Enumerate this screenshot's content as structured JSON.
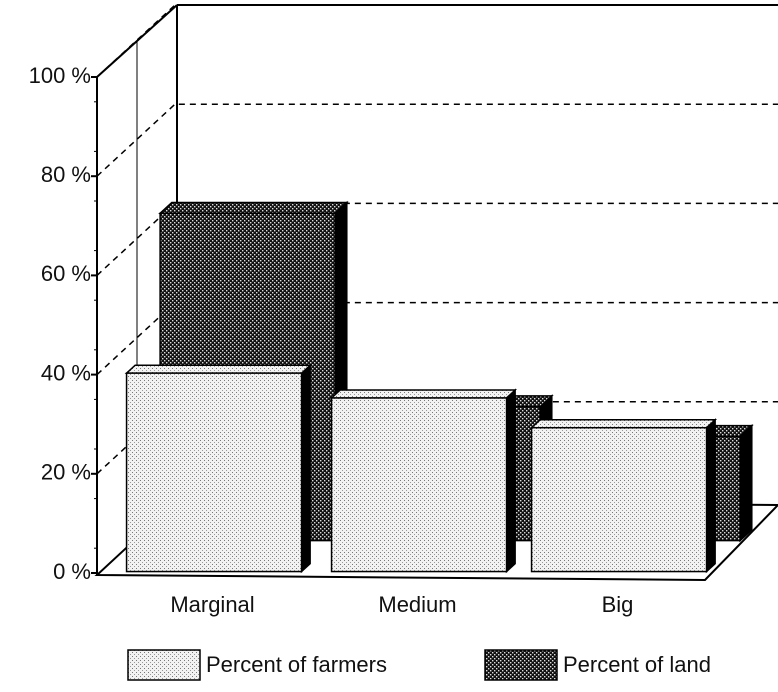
{
  "chart_data": {
    "type": "bar3d",
    "categories": [
      "Marginal",
      "Medium",
      "Big"
    ],
    "series": [
      {
        "name": "Percent of farmers",
        "color": "#e6e6e6",
        "values": [
          40,
          35,
          29
        ]
      },
      {
        "name": "Percent of land",
        "color": "#1a1a1a",
        "values": [
          66,
          27,
          21
        ]
      }
    ],
    "ylim": [
      0,
      100
    ],
    "yticks": [
      {
        "value": 0,
        "label": "0 %"
      },
      {
        "value": 20,
        "label": "20 %"
      },
      {
        "value": 40,
        "label": "40 %"
      },
      {
        "value": 60,
        "label": "60 %"
      },
      {
        "value": 80,
        "label": "80 %"
      },
      {
        "value": 100,
        "label": "100 %"
      }
    ],
    "grid": true
  }
}
